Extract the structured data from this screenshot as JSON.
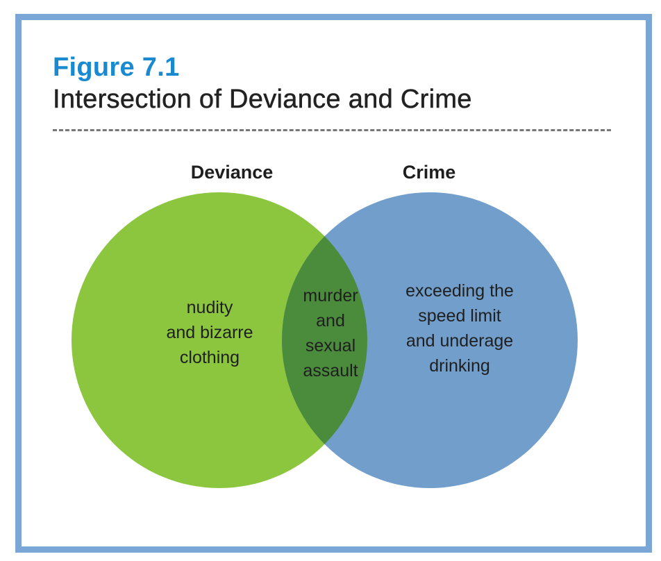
{
  "figure": {
    "label": "Figure 7.1",
    "title": "Intersection of Deviance and Crime"
  },
  "venn": {
    "sets": [
      {
        "name": "Deviance",
        "color": "#8cc63f"
      },
      {
        "name": "Crime",
        "color": "#729ecb"
      }
    ],
    "intersection_color": "#4a8b3c",
    "regions": {
      "deviance_only": [
        "nudity",
        "and bizarre",
        "clothing"
      ],
      "both": [
        "murder",
        "and",
        "sexual",
        "assault"
      ],
      "crime_only": [
        "exceeding the",
        "speed limit",
        "and underage",
        "drinking"
      ]
    }
  },
  "colors": {
    "frame_border": "#7ba7d6",
    "figure_label": "#1a8ad0",
    "title_text": "#222222",
    "divider": "#777777"
  }
}
